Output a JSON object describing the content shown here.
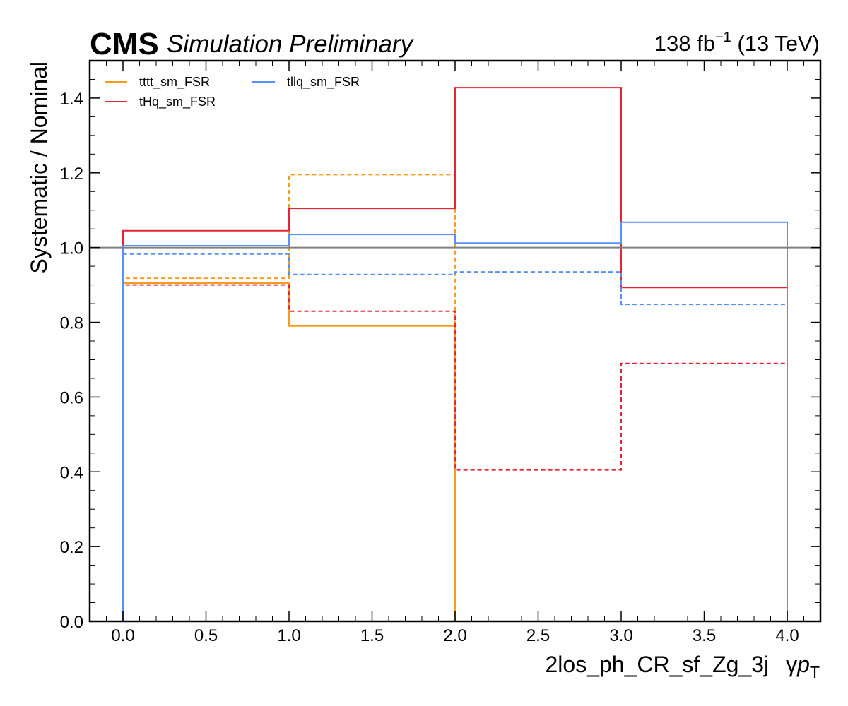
{
  "header": {
    "experiment": "CMS",
    "status": "Simulation Preliminary",
    "lumi_value": "138 fb",
    "lumi_exp": "−1",
    "energy": " (13 TeV)"
  },
  "chart_data": {
    "type": "line",
    "style": "step",
    "xlabel_main": "2los_ph_CR_sf_Zg_3j",
    "xlabel_var": "γ",
    "xlabel_var_italic": "p",
    "xlabel_var_sub": "T",
    "ylabel": "Systematic / Nominal",
    "xlim": [
      -0.2,
      4.2
    ],
    "ylim": [
      0.0,
      1.5
    ],
    "x_ticks": [
      0.0,
      0.5,
      1.0,
      1.5,
      2.0,
      2.5,
      3.0,
      3.5,
      4.0
    ],
    "x_tick_labels": [
      "0.0",
      "0.5",
      "1.0",
      "1.5",
      "2.0",
      "2.5",
      "3.0",
      "3.5",
      "4.0"
    ],
    "y_ticks": [
      0.0,
      0.2,
      0.4,
      0.6,
      0.8,
      1.0,
      1.2,
      1.4
    ],
    "y_tick_labels": [
      "0.0",
      "0.2",
      "0.4",
      "0.6",
      "0.8",
      "1.0",
      "1.2",
      "1.4"
    ],
    "bin_edges": [
      0,
      1,
      2,
      3,
      4
    ],
    "reference_line": 1.0,
    "grid": false,
    "legend_placement": "top-left",
    "series": [
      {
        "name": "tttt_sm_FSR",
        "variation": "up",
        "dash": "solid",
        "color": "#f89c20",
        "values": [
          0.905,
          0.79,
          0.0,
          0.0
        ]
      },
      {
        "name": "",
        "variation": "down",
        "dash": "dashed",
        "color": "#f89c20",
        "values": [
          0.918,
          1.195,
          0.0,
          0.0
        ]
      },
      {
        "name": "tHq_sm_FSR",
        "variation": "up",
        "dash": "solid",
        "color": "#e42536",
        "values": [
          1.045,
          1.105,
          1.428,
          0.893
        ]
      },
      {
        "name": "",
        "variation": "down",
        "dash": "dashed",
        "color": "#e42536",
        "values": [
          0.9,
          0.83,
          0.405,
          0.69
        ]
      },
      {
        "name": "tllq_sm_FSR",
        "variation": "up",
        "dash": "solid",
        "color": "#5790fc",
        "values": [
          1.005,
          1.035,
          1.012,
          1.068
        ]
      },
      {
        "name": "",
        "variation": "down",
        "dash": "dashed",
        "color": "#5790fc",
        "values": [
          0.983,
          0.928,
          0.935,
          0.848
        ]
      }
    ]
  }
}
